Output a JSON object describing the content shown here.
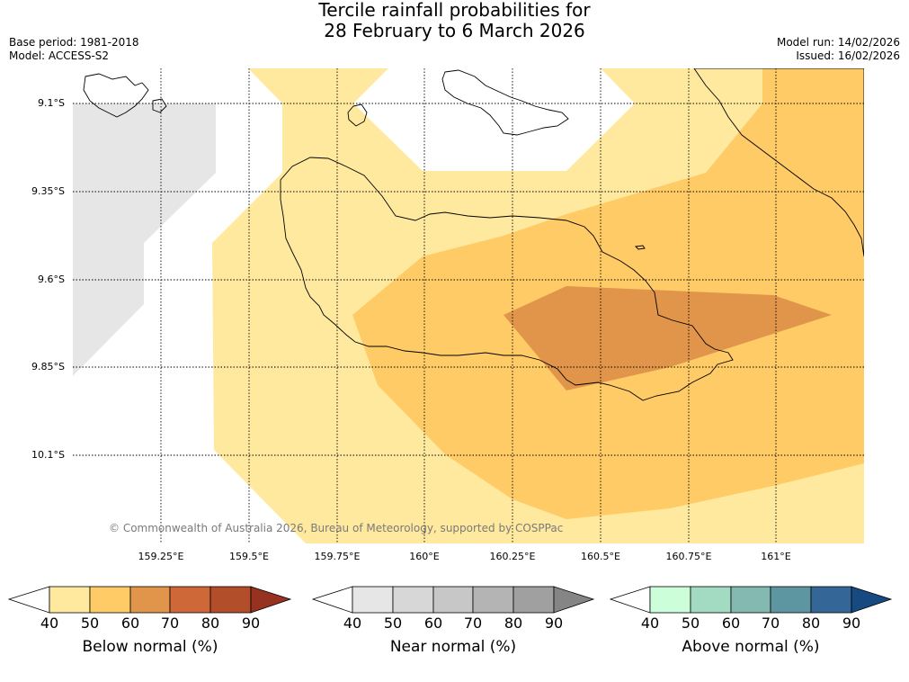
{
  "header": {
    "title_line1": "Tercile rainfall probabilities for",
    "title_line2": "28 February to 6 March 2026",
    "base_period": "Base period: 1981-2018",
    "model": "Model: ACCESS-S2",
    "model_run": "Model run: 14/02/2026",
    "issued": "Issued: 16/02/2026"
  },
  "map": {
    "lat_labels": [
      "9.1°S",
      "9.35°S",
      "9.6°S",
      "9.85°S",
      "10.1°S"
    ],
    "lon_labels": [
      "159.25°E",
      "159.5°E",
      "159.75°E",
      "160°E",
      "160.25°E",
      "160.5°E",
      "160.75°E",
      "161°E"
    ],
    "copyright": "© Commonwealth of Australia 2026, Bureau of Meteorology, supported by COSPPac",
    "regions": [
      {
        "category": "below",
        "probability_range": "40-50",
        "color": "#ffe99e"
      },
      {
        "category": "below",
        "probability_range": "50-60",
        "color": "#ffcb66"
      },
      {
        "category": "below",
        "probability_range": "60-70",
        "color": "#e0954a"
      },
      {
        "category": "near",
        "probability_range": "40-50",
        "color": "#e6e6e6"
      }
    ]
  },
  "colorbars": [
    {
      "title": "Below normal (%)",
      "ticks": [
        "40",
        "50",
        "60",
        "70",
        "80",
        "90"
      ],
      "colors": [
        "#ffffff",
        "#ffe99e",
        "#ffcb66",
        "#e0954a",
        "#cf6838",
        "#b34e2b",
        "#983220"
      ]
    },
    {
      "title": "Near normal (%)",
      "ticks": [
        "40",
        "50",
        "60",
        "70",
        "80",
        "90"
      ],
      "colors": [
        "#ffffff",
        "#e6e6e6",
        "#d7d7d7",
        "#c7c7c7",
        "#b4b4b4",
        "#a0a0a0",
        "#858585"
      ]
    },
    {
      "title": "Above normal (%)",
      "ticks": [
        "40",
        "50",
        "60",
        "70",
        "80",
        "90"
      ],
      "colors": [
        "#ffffff",
        "#ccffd9",
        "#a2dbc2",
        "#84b9b2",
        "#5d95a0",
        "#346797",
        "#164a80"
      ]
    }
  ]
}
